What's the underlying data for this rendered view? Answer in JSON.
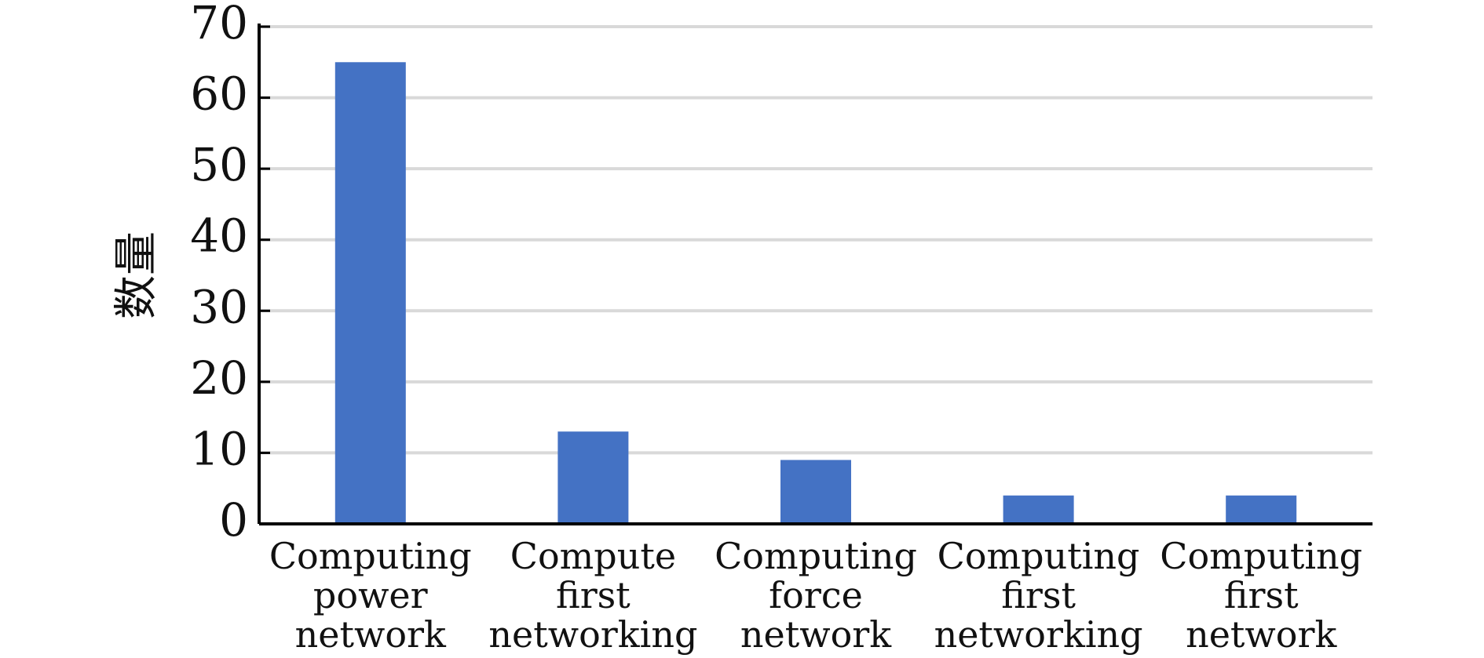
{
  "chart_data": {
    "type": "bar",
    "title": "",
    "xlabel": "",
    "ylabel": "数量",
    "ylim": [
      0,
      70
    ],
    "yticks": [
      0,
      10,
      20,
      30,
      40,
      50,
      60,
      70
    ],
    "grid": true,
    "categories": [
      "Computing power network",
      "Compute first networking",
      "Computing force network",
      "Computing first networking",
      "Computing first network"
    ],
    "category_lines": [
      [
        "Computing",
        "power",
        "network"
      ],
      [
        "Compute",
        "first",
        "networking"
      ],
      [
        "Computing",
        "force",
        "network"
      ],
      [
        "Computing",
        "first",
        "networking"
      ],
      [
        "Computing",
        "first",
        "network"
      ]
    ],
    "values": [
      65,
      13,
      9,
      4,
      4
    ],
    "bar_color": "#4472C4",
    "grid_color": "#D9D9D9",
    "axis_color": "#000000"
  }
}
